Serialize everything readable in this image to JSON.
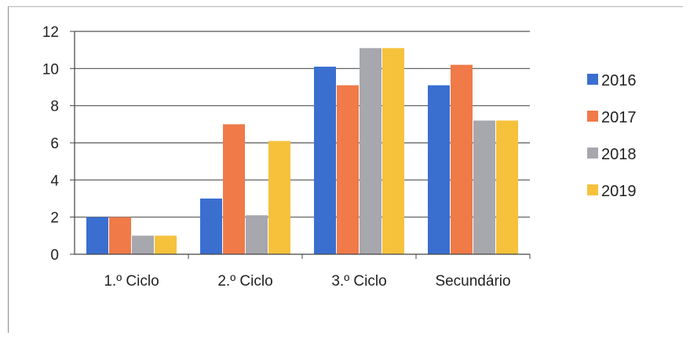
{
  "chart_data": {
    "type": "bar",
    "title": "",
    "xlabel": "",
    "ylabel": "",
    "categories": [
      "1.º Ciclo",
      "2.º Ciclo",
      "3.º Ciclo",
      "Secundário"
    ],
    "series": [
      {
        "name": "2016",
        "color": "#3a6fd0",
        "values": [
          2,
          3,
          10.1,
          9.1
        ]
      },
      {
        "name": "2017",
        "color": "#f07a48",
        "values": [
          2,
          7,
          9.1,
          10.2
        ]
      },
      {
        "name": "2018",
        "color": "#a7a7ae",
        "values": [
          1,
          2.1,
          11.1,
          7.2
        ]
      },
      {
        "name": "2019",
        "color": "#f6c23c",
        "values": [
          1,
          6.1,
          11.1,
          7.2
        ]
      }
    ],
    "ylim": [
      0,
      12
    ],
    "yticks": [
      0,
      2,
      4,
      6,
      8,
      10,
      12
    ],
    "grid": true,
    "legend": "right"
  }
}
